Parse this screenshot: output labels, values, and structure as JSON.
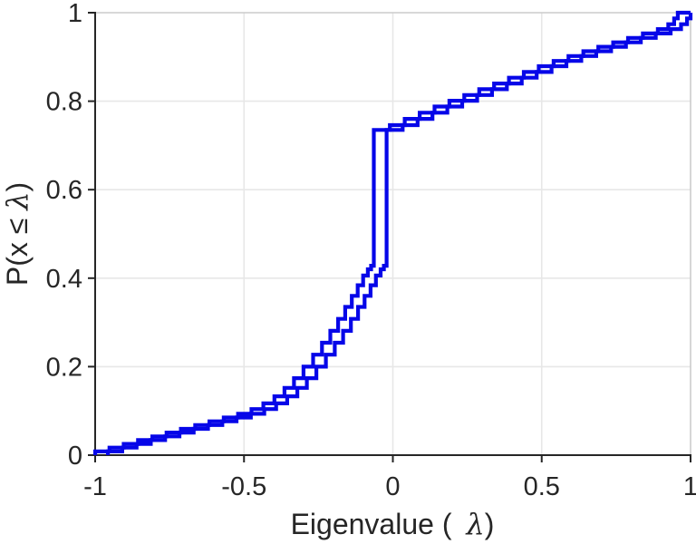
{
  "figure": {
    "background": "#ffffff"
  },
  "chart_data": {
    "type": "line",
    "subtype": "empirical-cdf-stairs",
    "title": "",
    "xlabel_prefix": "Eigenvalue (",
    "xlabel_lambda": "λ",
    "xlabel_suffix": ")",
    "ylabel_prefix": "P(x ≤ ",
    "ylabel_lambda": "λ",
    "ylabel_suffix": ")",
    "xlim": [
      -1,
      1
    ],
    "ylim": [
      0,
      1
    ],
    "xticks": {
      "values": [
        -1,
        -0.5,
        0,
        0.5,
        1
      ],
      "labels": [
        "-1",
        "-0.5",
        "0",
        "0.5",
        "1"
      ]
    },
    "yticks": {
      "values": [
        0,
        0.2,
        0.4,
        0.6,
        0.8,
        1
      ],
      "labels": [
        "0",
        "0.2",
        "0.4",
        "0.6",
        "0.8",
        "1"
      ]
    },
    "grid": true,
    "legend": null,
    "colors": {
      "line": "#0606e8",
      "axis": "#262626",
      "box": "#cccccc",
      "grid": "#e7e7e7",
      "text": "#262626"
    },
    "atom_jump": {
      "from": 0.428,
      "to": 0.735,
      "x_series_1": -0.064,
      "x_series_2": -0.021
    },
    "series": [
      {
        "name": "ecdf-1",
        "points": [
          [
            -1.0,
            0.0
          ],
          [
            -1.0,
            0.0085
          ],
          [
            -0.952,
            0.017
          ],
          [
            -0.904,
            0.0255
          ],
          [
            -0.856,
            0.034
          ],
          [
            -0.808,
            0.0425
          ],
          [
            -0.76,
            0.051
          ],
          [
            -0.712,
            0.0595
          ],
          [
            -0.664,
            0.068
          ],
          [
            -0.616,
            0.0765
          ],
          [
            -0.568,
            0.085
          ],
          [
            -0.52,
            0.0935
          ],
          [
            -0.475,
            0.104
          ],
          [
            -0.435,
            0.117
          ],
          [
            -0.398,
            0.133
          ],
          [
            -0.364,
            0.152
          ],
          [
            -0.332,
            0.174
          ],
          [
            -0.3,
            0.2
          ],
          [
            -0.268,
            0.227
          ],
          [
            -0.238,
            0.254
          ],
          [
            -0.21,
            0.281
          ],
          [
            -0.184,
            0.308
          ],
          [
            -0.16,
            0.335
          ],
          [
            -0.138,
            0.36
          ],
          [
            -0.118,
            0.384
          ],
          [
            -0.1,
            0.406
          ],
          [
            -0.084,
            0.42
          ],
          [
            -0.073,
            0.428
          ],
          [
            -0.064,
            0.735
          ],
          [
            -0.01,
            0.746
          ],
          [
            0.04,
            0.76
          ],
          [
            0.09,
            0.774
          ],
          [
            0.14,
            0.788
          ],
          [
            0.19,
            0.801
          ],
          [
            0.24,
            0.814
          ],
          [
            0.29,
            0.827
          ],
          [
            0.34,
            0.84
          ],
          [
            0.39,
            0.853
          ],
          [
            0.44,
            0.866
          ],
          [
            0.49,
            0.879
          ],
          [
            0.54,
            0.891
          ],
          [
            0.59,
            0.902
          ],
          [
            0.64,
            0.913
          ],
          [
            0.69,
            0.923
          ],
          [
            0.74,
            0.933
          ],
          [
            0.79,
            0.943
          ],
          [
            0.84,
            0.953
          ],
          [
            0.89,
            0.963
          ],
          [
            0.925,
            0.974
          ],
          [
            0.945,
            0.987
          ],
          [
            0.957,
            1.0
          ],
          [
            1.0,
            1.0
          ]
        ]
      },
      {
        "name": "ecdf-2",
        "points": [
          [
            -0.957,
            0.0
          ],
          [
            -0.957,
            0.0085
          ],
          [
            -0.909,
            0.017
          ],
          [
            -0.861,
            0.0255
          ],
          [
            -0.813,
            0.034
          ],
          [
            -0.765,
            0.0425
          ],
          [
            -0.717,
            0.051
          ],
          [
            -0.669,
            0.0595
          ],
          [
            -0.621,
            0.068
          ],
          [
            -0.573,
            0.0765
          ],
          [
            -0.525,
            0.085
          ],
          [
            -0.477,
            0.0935
          ],
          [
            -0.432,
            0.104
          ],
          [
            -0.392,
            0.117
          ],
          [
            -0.355,
            0.133
          ],
          [
            -0.321,
            0.152
          ],
          [
            -0.289,
            0.174
          ],
          [
            -0.257,
            0.2
          ],
          [
            -0.225,
            0.227
          ],
          [
            -0.195,
            0.254
          ],
          [
            -0.167,
            0.281
          ],
          [
            -0.141,
            0.308
          ],
          [
            -0.117,
            0.335
          ],
          [
            -0.095,
            0.36
          ],
          [
            -0.075,
            0.384
          ],
          [
            -0.057,
            0.406
          ],
          [
            -0.041,
            0.42
          ],
          [
            -0.03,
            0.428
          ],
          [
            -0.021,
            0.735
          ],
          [
            0.033,
            0.746
          ],
          [
            0.083,
            0.76
          ],
          [
            0.133,
            0.774
          ],
          [
            0.183,
            0.788
          ],
          [
            0.233,
            0.801
          ],
          [
            0.283,
            0.814
          ],
          [
            0.333,
            0.827
          ],
          [
            0.383,
            0.84
          ],
          [
            0.433,
            0.853
          ],
          [
            0.483,
            0.866
          ],
          [
            0.533,
            0.879
          ],
          [
            0.583,
            0.891
          ],
          [
            0.633,
            0.902
          ],
          [
            0.683,
            0.913
          ],
          [
            0.733,
            0.923
          ],
          [
            0.783,
            0.933
          ],
          [
            0.833,
            0.943
          ],
          [
            0.883,
            0.953
          ],
          [
            0.933,
            0.963
          ],
          [
            0.968,
            0.974
          ],
          [
            0.988,
            0.987
          ],
          [
            1.0,
            1.0
          ]
        ]
      }
    ]
  }
}
